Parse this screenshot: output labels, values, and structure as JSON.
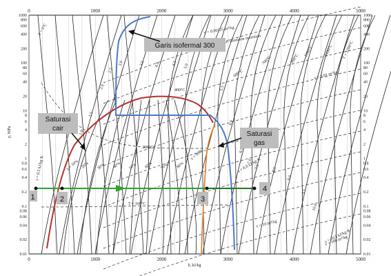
{
  "axes": {
    "x_label": "h, kJ/kg",
    "y_label": "p, MPa",
    "x_ticks": [
      "0",
      "1000",
      "2000",
      "3000",
      "4000",
      "5000"
    ],
    "y_ticks_left": [
      "1000",
      "800",
      "600",
      "400",
      "200",
      "100",
      "80",
      "60",
      "40",
      "20",
      "10",
      "8",
      "6",
      "4",
      "2",
      "1",
      "0.8",
      "0.6",
      "0.4",
      "0.2",
      "0.1",
      "0.08",
      "0.06",
      "0.04",
      "0.02",
      "0.01"
    ],
    "y_ticks_right": [
      "1000",
      "800",
      "600",
      "400",
      "200",
      "100",
      "80",
      "60",
      "40",
      "20",
      "10",
      "8",
      "6",
      "4",
      "2",
      "1",
      "0.8",
      "0.6",
      "0.4",
      "0.2",
      "0.1",
      "0.08",
      "0.06",
      "0.04",
      "0.02",
      "0.01"
    ]
  },
  "curve_labels": {
    "t0": "T = 0°C",
    "t100": "T = 100°C",
    "t200": "200°C",
    "t400": "400°C",
    "t600": "600°C",
    "t700": "700°C",
    "t900": "900°C",
    "t1000": "1000°C",
    "t1100": "1100°C",
    "t1200": "T = 1200°C",
    "v_small": "v = 0.00125 m³/kg",
    "v_001": "v = 0.01 m³/kg",
    "v_10": "v = 10 m³/kg",
    "v_100": "v = 100 m³/kg",
    "joule": "Joule-Thomson inversion",
    "s_05": "s = 0.5 kJ/kg·K",
    "s_8": "s = 8.0 kJ/kg·K",
    "s_105": "s = 10.5 kJ/kg·K",
    "x_10": "x = 10%",
    "x_90": "x = 90%",
    "s_vals": [
      "1.0",
      "1.5",
      "2.0",
      "2.5",
      "3.0",
      "3.5",
      "4.0",
      "4.5",
      "5.0",
      "5.5",
      "6.0",
      "6.5",
      "7.0",
      "7.5",
      "8.5",
      "9.0",
      "9.5",
      "10.0"
    ],
    "x_vals": [
      "20%",
      "30%",
      "40%",
      "50%",
      "60%",
      "70%",
      "80%"
    ]
  },
  "annotations": {
    "isotherm": "Garis isofermal 300",
    "sat_liquid_1": "Saturasi",
    "sat_liquid_2": "cair",
    "sat_gas_1": "Saturasi",
    "sat_gas_2": "gas"
  },
  "points": [
    {
      "label": "1"
    },
    {
      "label": "2"
    },
    {
      "label": "3"
    },
    {
      "label": "4"
    }
  ],
  "colors": {
    "saturation_curve": "#b4322a",
    "isotherm": "#4a78c8",
    "process_line": "#2aa52a",
    "process_line_3_4": "#1f7a1f",
    "orange_line": "#e07a1a",
    "grid": "#333333"
  }
}
